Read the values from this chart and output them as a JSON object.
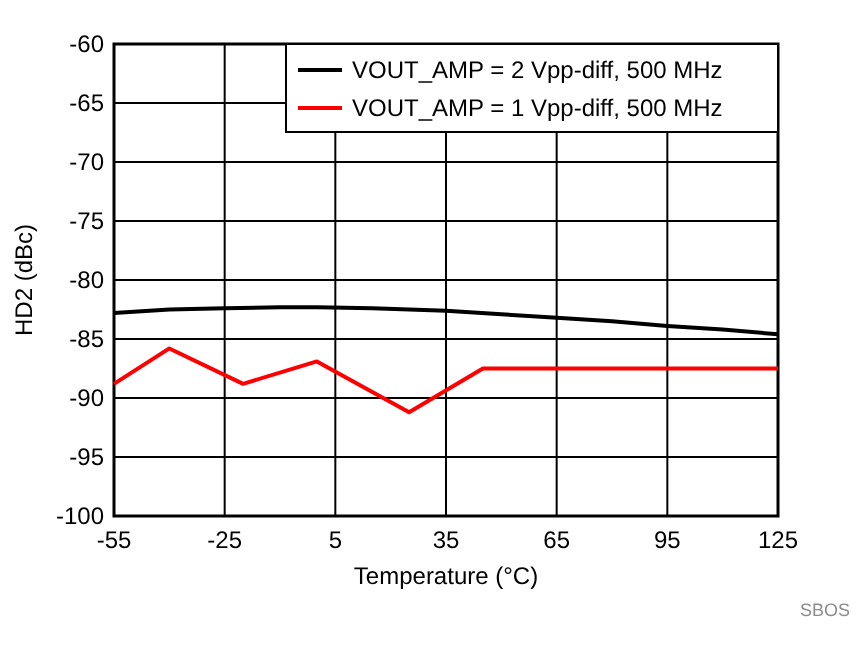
{
  "chart_data": {
    "type": "line",
    "xlabel": "Temperature (°C)",
    "ylabel": "HD2 (dBc)",
    "xlim": [
      -55,
      125
    ],
    "xticks": [
      -55,
      -25,
      5,
      35,
      65,
      95,
      125
    ],
    "ylim": [
      -100,
      -60
    ],
    "yticks": [
      -100,
      -95,
      -90,
      -85,
      -80,
      -75,
      -70,
      -65,
      -60
    ],
    "grid": true,
    "legend": "top right",
    "line_style": "solid",
    "series": [
      {
        "name": "VOUT_AMP = 2 Vpp-diff, 500 MHz",
        "color": "#000000",
        "x": [
          -55,
          -40,
          -25,
          -10,
          0,
          15,
          25,
          35,
          50,
          65,
          80,
          95,
          110,
          125
        ],
        "values": [
          -82.8,
          -82.5,
          -82.4,
          -82.3,
          -82.3,
          -82.4,
          -82.5,
          -82.6,
          -82.9,
          -83.2,
          -83.5,
          -83.9,
          -84.2,
          -84.6
        ]
      },
      {
        "name": "VOUT_AMP = 1 Vpp-diff, 500 MHz",
        "color": "#ff0000",
        "x": [
          -55,
          -40,
          -20,
          0,
          25,
          45,
          65,
          95,
          125
        ],
        "values": [
          -88.8,
          -85.8,
          -88.8,
          -86.9,
          -91.2,
          -87.5,
          -87.5,
          -87.5,
          -87.5
        ]
      }
    ],
    "annotations": [
      "SBOS"
    ]
  }
}
